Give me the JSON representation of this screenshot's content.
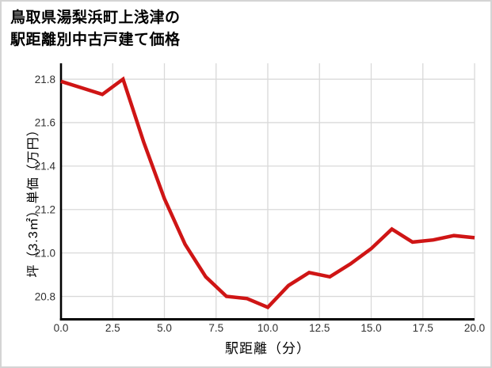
{
  "card": {
    "background": "#ffffff",
    "border_color": "#d4d4d4"
  },
  "title": {
    "line1": "鳥取県湯梨浜町上浅津の",
    "line2": "駅距離別中古戸建て価格"
  },
  "chart_data": {
    "type": "line",
    "title": "鳥取県湯梨浜町上浅津の駅距離別中古戸建て価格",
    "xlabel": "駅距離（分）",
    "ylabel": "坪（3.3㎡）単価（万円）",
    "x": [
      0,
      1,
      2,
      3,
      4,
      5,
      6,
      7,
      8,
      9,
      10,
      11,
      12,
      13,
      14,
      15,
      16,
      17,
      18,
      19,
      20
    ],
    "values": [
      21.79,
      21.76,
      21.73,
      21.8,
      21.51,
      21.25,
      21.04,
      20.89,
      20.8,
      20.79,
      20.75,
      20.85,
      20.91,
      20.89,
      20.95,
      21.02,
      21.11,
      21.05,
      21.06,
      21.08,
      21.07
    ],
    "xlim": [
      0,
      20
    ],
    "ylim": [
      20.7,
      21.873
    ],
    "xticks": [
      0,
      2.5,
      5,
      7.5,
      10,
      12.5,
      15,
      17.5,
      20
    ],
    "xtick_labels": [
      "0.0",
      "2.5",
      "5.0",
      "7.5",
      "10.0",
      "12.5",
      "15.0",
      "17.5",
      "20.0"
    ],
    "yticks": [
      21.8,
      21.6,
      21.4,
      21.2,
      21.0,
      20.8
    ],
    "ytick_labels": [
      "21.8",
      "21.6",
      "21.4",
      "21.2",
      "21.0",
      "20.8"
    ],
    "grid": true,
    "legend": "none",
    "line_color": "#cf1515",
    "grid_color": "#d9d9d9",
    "spine_color": "#000000",
    "tick_color": "#303030"
  }
}
